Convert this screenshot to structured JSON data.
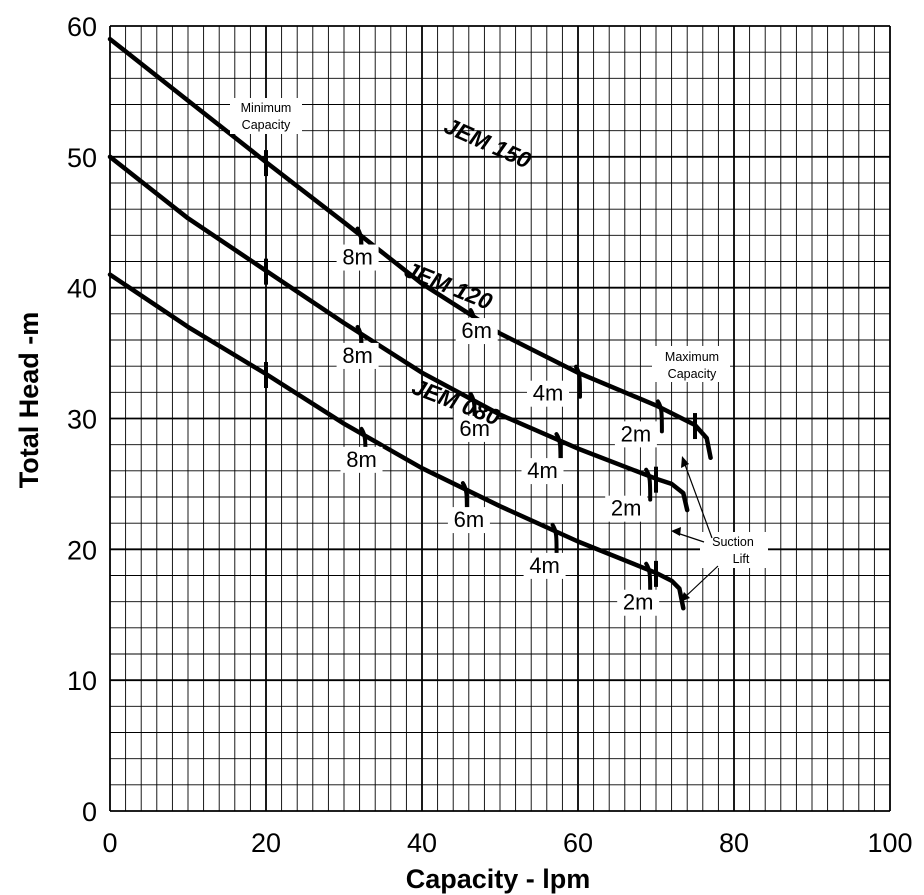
{
  "chart_data": {
    "type": "line",
    "title": "",
    "xlabel": "Capacity - lpm",
    "ylabel": "Total Head -m",
    "xlim": [
      0,
      100
    ],
    "ylim": [
      0,
      60
    ],
    "xticks": [
      "0",
      "20",
      "40",
      "60",
      "80",
      "100"
    ],
    "yticks": [
      "0",
      "10",
      "20",
      "30",
      "40",
      "50",
      "60"
    ],
    "grid": true,
    "series": [
      {
        "name": "JEM 150",
        "x": [
          0,
          10,
          20,
          30,
          40,
          50,
          60,
          70,
          75,
          76.5,
          77
        ],
        "y": [
          59,
          54.3,
          49.6,
          45,
          40.3,
          36.5,
          33.5,
          31,
          29.5,
          28.5,
          27
        ],
        "min_capacity": 20,
        "max_capacity": 75,
        "suction_lift": [
          {
            "label": "8m",
            "x": 32
          },
          {
            "label": "6m",
            "x": 46.5
          },
          {
            "label": "4m",
            "x": 60
          },
          {
            "label": "2m",
            "x": 70.5
          }
        ]
      },
      {
        "name": "JEM 120",
        "x": [
          0,
          10,
          20,
          30,
          40,
          50,
          60,
          70,
          72,
          73.5,
          74
        ],
        "y": [
          50,
          45.3,
          41.3,
          37.3,
          33.5,
          30.3,
          27.7,
          25.4,
          25,
          24.3,
          23
        ],
        "min_capacity": 20,
        "max_capacity": 70,
        "suction_lift": [
          {
            "label": "8m",
            "x": 32
          },
          {
            "label": "6m",
            "x": 46.5
          },
          {
            "label": "4m",
            "x": 57.5
          },
          {
            "label": "2m",
            "x": 69
          }
        ]
      },
      {
        "name": "JEM 080",
        "x": [
          0,
          10,
          20,
          30,
          40,
          50,
          60,
          70,
          72,
          73,
          73.5
        ],
        "y": [
          41,
          37,
          33.4,
          29.6,
          26.2,
          23.3,
          20.6,
          18.2,
          17.6,
          17,
          15.5
        ],
        "min_capacity": 20,
        "max_capacity": 70,
        "suction_lift": [
          {
            "label": "8m",
            "x": 32.5
          },
          {
            "label": "6m",
            "x": 45.5
          },
          {
            "label": "4m",
            "x": 57
          },
          {
            "label": "2m",
            "x": 69
          }
        ]
      }
    ],
    "annotations": {
      "min_capacity": [
        "Minimum",
        "Capacity"
      ],
      "max_capacity": [
        "Maximum",
        "Capacity"
      ],
      "suction_lift": [
        "Suction",
        "Lift"
      ]
    }
  }
}
